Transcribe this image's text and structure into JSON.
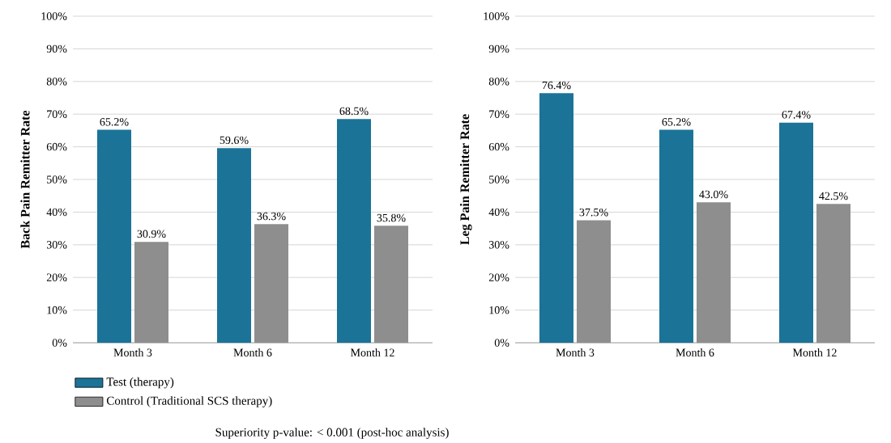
{
  "chart_data": [
    {
      "type": "bar",
      "ylabel": "Back Pain Remitter Rate",
      "categories": [
        "Month 3",
        "Month 6",
        "Month 12"
      ],
      "series": [
        {
          "name": "Test (therapy)",
          "color": "#1b7398",
          "values": [
            65.2,
            59.6,
            68.5
          ],
          "value_labels": [
            "65.2%",
            "59.6%",
            "68.5%"
          ]
        },
        {
          "name": "Control (Traditional SCS therapy)",
          "color": "#8e8e8e",
          "values": [
            30.9,
            36.3,
            35.8
          ],
          "value_labels": [
            "30.9%",
            "36.3%",
            "35.8%"
          ]
        }
      ],
      "ylim": [
        0,
        100
      ],
      "yticks": [
        {
          "value": 0,
          "label": "0%"
        },
        {
          "value": 10,
          "label": "10%"
        },
        {
          "value": 20,
          "label": "20%"
        },
        {
          "value": 30,
          "label": "30%"
        },
        {
          "value": 40,
          "label": "40%"
        },
        {
          "value": 50,
          "label": "50%"
        },
        {
          "value": 60,
          "label": "60%"
        },
        {
          "value": 70,
          "label": "70%"
        },
        {
          "value": 80,
          "label": "80%"
        },
        {
          "value": 90,
          "label": "90%"
        },
        {
          "value": 100,
          "label": "100%"
        }
      ],
      "grid": "y",
      "legend": "bottom",
      "annotations": [
        "Superiority p-value: < 0.001 (post-hoc analysis)"
      ]
    },
    {
      "type": "bar",
      "ylabel": "Leg Pain Remitter Rate",
      "categories": [
        "Month 3",
        "Month 6",
        "Month 12"
      ],
      "series": [
        {
          "color": "#1b7398",
          "values": [
            76.4,
            65.2,
            67.4
          ],
          "value_labels": [
            "76.4%",
            "65.2%",
            "67.4%"
          ]
        },
        {
          "color": "#8e8e8e",
          "values": [
            37.5,
            43.0,
            42.5
          ],
          "value_labels": [
            "37.5%",
            "43.0%",
            "42.5%"
          ]
        }
      ],
      "ylim": [
        0,
        100
      ],
      "yticks": [
        {
          "value": 0,
          "label": "0%"
        },
        {
          "value": 10,
          "label": "10%"
        },
        {
          "value": 20,
          "label": "20%"
        },
        {
          "value": 30,
          "label": "30%"
        },
        {
          "value": 40,
          "label": "40%"
        },
        {
          "value": 50,
          "label": "50%"
        },
        {
          "value": 60,
          "label": "60%"
        },
        {
          "value": 70,
          "label": "70%"
        },
        {
          "value": 80,
          "label": "80%"
        },
        {
          "value": 90,
          "label": "90%"
        },
        {
          "value": 100,
          "label": "100%"
        }
      ],
      "grid": "y",
      "legend": false
    }
  ]
}
